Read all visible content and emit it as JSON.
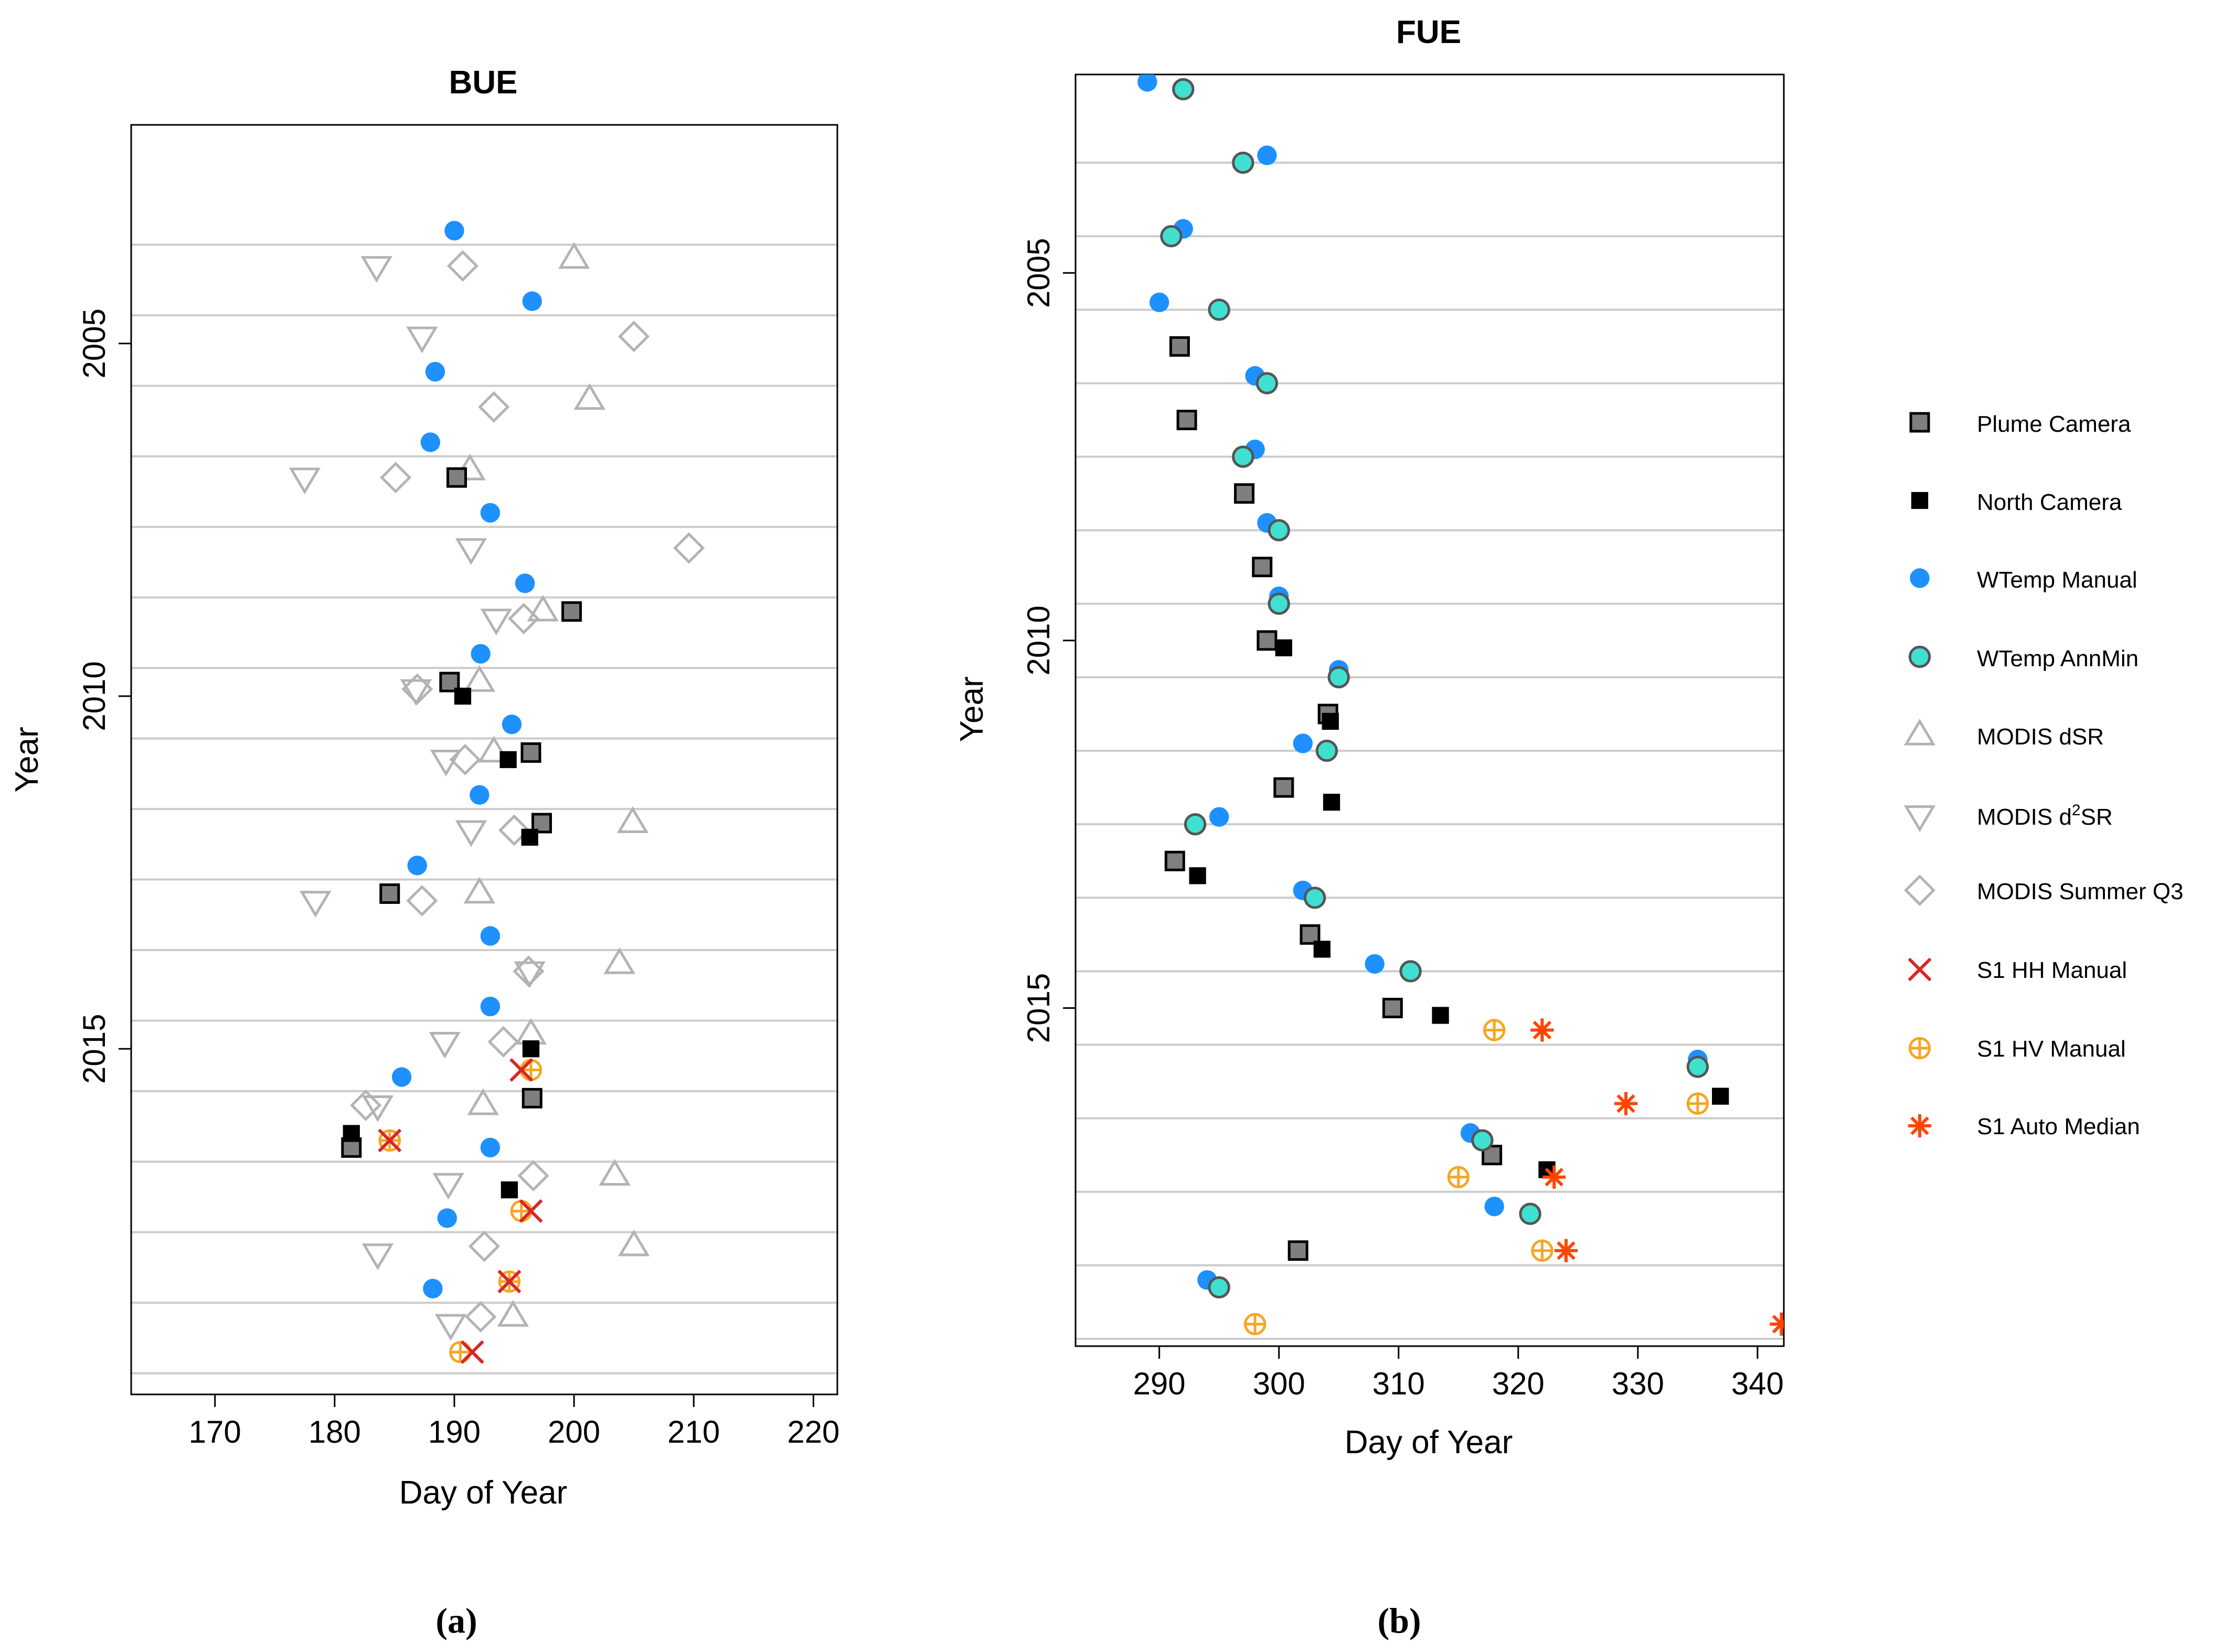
{
  "colors": {
    "plume": "#7f7f7f",
    "north": "#000000",
    "wtemp_manual": "#1e90ff",
    "wtemp_annmin": "#40e0d0",
    "modis": "#b3b3b3",
    "s1_hh": "#d62728",
    "s1_hv": "#f5a623",
    "s1_auto": "#ff4500",
    "grid": "#cccccc"
  },
  "legend": {
    "items": [
      {
        "key": "plume",
        "label": "Plume Camera"
      },
      {
        "key": "north",
        "label": "North Camera"
      },
      {
        "key": "wtemp_manual",
        "label": "WTemp Manual"
      },
      {
        "key": "wtemp_annmin",
        "label": "WTemp AnnMin"
      },
      {
        "key": "modis_dsr",
        "label": "MODIS dSR"
      },
      {
        "key": "modis_d2sr",
        "label": "MODIS d2SR",
        "label_main": "MODIS d",
        "label_sup": "2",
        "label_rest": "SR"
      },
      {
        "key": "modis_q3",
        "label": "MODIS Summer Q3"
      },
      {
        "key": "s1_hh",
        "label": "S1 HH Manual"
      },
      {
        "key": "s1_hv",
        "label": "S1 HV Manual"
      },
      {
        "key": "s1_auto",
        "label": "S1 Auto Median"
      }
    ]
  },
  "chart_data": [
    {
      "type": "scatter",
      "panel_label": "(a)",
      "title": "BUE",
      "xlabel": "Day of Year",
      "ylabel": "Year",
      "xlim": [
        163,
        222
      ],
      "ylim": [
        2019.9,
        2001.9
      ],
      "xticks": [
        170,
        180,
        190,
        200,
        210,
        220
      ],
      "yticks": [
        2005,
        2010,
        2015
      ],
      "ytick_labels": [
        "2005",
        "2010",
        "2015"
      ],
      "grid_years": [
        2003.6,
        2004.6,
        2005.6,
        2006.6,
        2007.6,
        2008.6,
        2009.6,
        2010.6,
        2011.6,
        2012.6,
        2013.6,
        2014.6,
        2015.6,
        2016.6,
        2017.6,
        2018.6,
        2019.6
      ],
      "series": {
        "plume": [
          [
            190.2,
            2006.9
          ],
          [
            199.8,
            2008.8
          ],
          [
            189.6,
            2009.8
          ],
          [
            196.4,
            2010.8
          ],
          [
            197.3,
            2011.8
          ],
          [
            184.6,
            2012.8
          ],
          [
            196.5,
            2015.7
          ],
          [
            181.4,
            2016.4
          ]
        ],
        "north": [
          [
            190.7,
            2010.0
          ],
          [
            194.5,
            2010.9
          ],
          [
            196.3,
            2012.0
          ],
          [
            196.4,
            2015.0
          ],
          [
            181.4,
            2016.2
          ],
          [
            194.6,
            2017.0
          ]
        ],
        "wtemp_manual": [
          [
            190.0,
            2003.4
          ],
          [
            196.5,
            2004.4
          ],
          [
            188.4,
            2005.4
          ],
          [
            188.0,
            2006.4
          ],
          [
            193.0,
            2007.4
          ],
          [
            195.9,
            2008.4
          ],
          [
            192.2,
            2009.4
          ],
          [
            194.8,
            2010.4
          ],
          [
            192.1,
            2011.4
          ],
          [
            186.9,
            2012.4
          ],
          [
            193.0,
            2013.4
          ],
          [
            193.0,
            2014.4
          ],
          [
            185.6,
            2015.4
          ],
          [
            193.0,
            2016.4
          ],
          [
            189.4,
            2017.4
          ],
          [
            188.2,
            2018.4
          ]
        ],
        "modis_dsr": [
          [
            200.0,
            2003.8
          ],
          [
            201.3,
            2005.8
          ],
          [
            191.3,
            2006.8
          ],
          [
            197.4,
            2008.8
          ],
          [
            192.1,
            2009.8
          ],
          [
            193.3,
            2010.8
          ],
          [
            204.9,
            2011.8
          ],
          [
            192.1,
            2012.8
          ],
          [
            203.8,
            2013.8
          ],
          [
            196.4,
            2014.8
          ],
          [
            192.4,
            2015.8
          ],
          [
            203.4,
            2016.8
          ],
          [
            205.0,
            2017.8
          ],
          [
            194.9,
            2018.8
          ]
        ],
        "modis_d2sr": [
          [
            183.5,
            2003.9
          ],
          [
            187.3,
            2004.9
          ],
          [
            177.5,
            2006.9
          ],
          [
            191.4,
            2007.9
          ],
          [
            193.5,
            2008.9
          ],
          [
            186.8,
            2009.9
          ],
          [
            189.3,
            2010.9
          ],
          [
            191.4,
            2011.9
          ],
          [
            178.4,
            2012.9
          ],
          [
            196.3,
            2013.9
          ],
          [
            189.2,
            2014.9
          ],
          [
            183.6,
            2015.8
          ],
          [
            189.5,
            2016.9
          ],
          [
            183.6,
            2017.9
          ],
          [
            189.7,
            2018.9
          ]
        ],
        "modis_q3": [
          [
            190.7,
            2003.9
          ],
          [
            205.0,
            2004.9
          ],
          [
            193.3,
            2005.9
          ],
          [
            185.1,
            2006.9
          ],
          [
            209.6,
            2007.9
          ],
          [
            195.8,
            2008.9
          ],
          [
            186.9,
            2009.9
          ],
          [
            190.9,
            2010.9
          ],
          [
            195.0,
            2011.9
          ],
          [
            187.3,
            2012.9
          ],
          [
            196.2,
            2013.9
          ],
          [
            194.1,
            2014.9
          ],
          [
            182.6,
            2015.8
          ],
          [
            196.6,
            2016.8
          ],
          [
            192.5,
            2017.8
          ],
          [
            192.2,
            2018.8
          ]
        ],
        "s1_hh": [
          [
            195.6,
            2015.3
          ],
          [
            184.6,
            2016.3
          ],
          [
            196.4,
            2017.3
          ],
          [
            194.6,
            2018.3
          ],
          [
            191.5,
            2019.3
          ]
        ],
        "s1_hv": [
          [
            196.4,
            2015.3
          ],
          [
            184.6,
            2016.3
          ],
          [
            195.6,
            2017.3
          ],
          [
            194.6,
            2018.3
          ],
          [
            190.5,
            2019.3
          ]
        ]
      }
    },
    {
      "type": "scatter",
      "panel_label": "(b)",
      "title": "FUE",
      "xlabel": "Day of Year",
      "ylabel": "Year",
      "xlim": [
        283,
        342.2
      ],
      "ylim": [
        2019.6,
        2002.3
      ],
      "xticks": [
        290,
        300,
        310,
        320,
        330,
        340
      ],
      "yticks": [
        2005,
        2010,
        2015
      ],
      "ytick_labels": [
        "2005",
        "2010",
        "2015"
      ],
      "grid_years": [
        2003.5,
        2004.5,
        2005.5,
        2006.5,
        2007.5,
        2008.5,
        2009.5,
        2010.5,
        2011.5,
        2012.5,
        2013.5,
        2014.5,
        2015.5,
        2016.5,
        2017.5,
        2018.5,
        2019.5
      ],
      "series": {
        "plume": [
          [
            291.7,
            2006.0
          ],
          [
            292.3,
            2007.0
          ],
          [
            297.1,
            2008.0
          ],
          [
            298.6,
            2009.0
          ],
          [
            299.0,
            2010.0
          ],
          [
            304.1,
            2011.0
          ],
          [
            300.4,
            2012.0
          ],
          [
            291.3,
            2013.0
          ],
          [
            302.6,
            2014.0
          ],
          [
            309.5,
            2015.0
          ],
          [
            317.8,
            2017.0
          ],
          [
            301.6,
            2018.3
          ]
        ],
        "north": [
          [
            300.4,
            2010.1
          ],
          [
            304.3,
            2011.1
          ],
          [
            304.4,
            2012.2
          ],
          [
            293.2,
            2013.2
          ],
          [
            303.6,
            2014.2
          ],
          [
            313.5,
            2015.1
          ],
          [
            336.9,
            2016.2
          ],
          [
            322.4,
            2017.2
          ]
        ],
        "wtemp_manual": [
          [
            289.0,
            2002.4
          ],
          [
            299.0,
            2003.4
          ],
          [
            292.0,
            2004.4
          ],
          [
            290.0,
            2005.4
          ],
          [
            298.0,
            2006.4
          ],
          [
            298.0,
            2007.4
          ],
          [
            299.0,
            2008.4
          ],
          [
            300.0,
            2009.4
          ],
          [
            305.0,
            2010.4
          ],
          [
            302.0,
            2011.4
          ],
          [
            295.0,
            2012.4
          ],
          [
            302.0,
            2013.4
          ],
          [
            308.0,
            2014.4
          ],
          [
            335.0,
            2015.7
          ],
          [
            316.0,
            2016.7
          ],
          [
            318.0,
            2017.7
          ],
          [
            294.0,
            2018.7
          ]
        ],
        "wtemp_annmin": [
          [
            292.0,
            2002.5
          ],
          [
            297.0,
            2003.5
          ],
          [
            291.0,
            2004.5
          ],
          [
            295.0,
            2005.5
          ],
          [
            299.0,
            2006.5
          ],
          [
            297.0,
            2007.5
          ],
          [
            300.0,
            2008.5
          ],
          [
            300.0,
            2009.5
          ],
          [
            305.0,
            2010.5
          ],
          [
            304.0,
            2011.5
          ],
          [
            293.0,
            2012.5
          ],
          [
            303.0,
            2013.5
          ],
          [
            311.0,
            2014.5
          ],
          [
            335.0,
            2015.8
          ],
          [
            317.0,
            2016.8
          ],
          [
            321.0,
            2017.8
          ],
          [
            295.0,
            2018.8
          ]
        ],
        "s1_hv": [
          [
            318.0,
            2015.3
          ],
          [
            335.0,
            2016.3
          ],
          [
            315.0,
            2017.3
          ],
          [
            322.0,
            2018.3
          ],
          [
            298.0,
            2019.3
          ]
        ],
        "s1_auto": [
          [
            322.0,
            2015.3
          ],
          [
            329.0,
            2016.3
          ],
          [
            323.0,
            2017.3
          ],
          [
            324.0,
            2018.3
          ],
          [
            342.0,
            2019.3
          ]
        ]
      }
    }
  ]
}
